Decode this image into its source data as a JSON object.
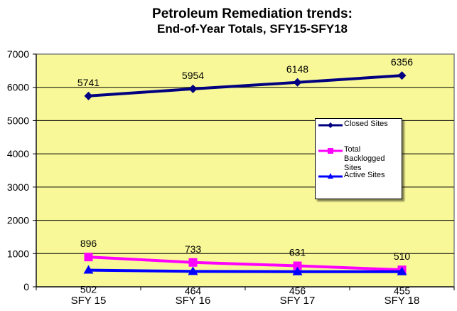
{
  "title": {
    "line1": "Petroleum Remediation trends:",
    "line2": "End-of-Year Totals, SFY15-SFY18"
  },
  "colors": {
    "plot_background": "#F8F898",
    "closed_sites": "#000080",
    "total_backlogged": "#FF00FF",
    "active_sites": "#0000FF",
    "gridlines": "#000000"
  },
  "axes": {
    "y_ticks": [
      "0",
      "1000",
      "2000",
      "3000",
      "4000",
      "5000",
      "6000",
      "7000"
    ],
    "x_ticks": [
      "SFY 15",
      "SFY 16",
      "SFY 17",
      "SFY 18"
    ]
  },
  "legend": {
    "items": [
      {
        "label": "Closed Sites",
        "marker": "diamond"
      },
      {
        "label": "Total Backlogged Sites",
        "marker": "square"
      },
      {
        "label": "Active Sites",
        "marker": "triangle"
      }
    ]
  },
  "data_labels": {
    "closed": [
      "5741",
      "5954",
      "6148",
      "6356"
    ],
    "backlogged": [
      "896",
      "733",
      "631",
      "510"
    ],
    "active": [
      "502",
      "464",
      "456",
      "455"
    ]
  },
  "chart_data": {
    "type": "line",
    "title": "Petroleum Remediation trends: End-of-Year Totals, SFY15-SFY18",
    "xlabel": "",
    "ylabel": "",
    "categories": [
      "SFY 15",
      "SFY 16",
      "SFY 17",
      "SFY 18"
    ],
    "series": [
      {
        "name": "Closed Sites",
        "values": [
          5741,
          5954,
          6148,
          6356
        ],
        "color": "#000080",
        "marker": "diamond"
      },
      {
        "name": "Total Backlogged Sites",
        "values": [
          896,
          733,
          631,
          510
        ],
        "color": "#FF00FF",
        "marker": "square"
      },
      {
        "name": "Active Sites",
        "values": [
          502,
          464,
          456,
          455
        ],
        "color": "#0000FF",
        "marker": "triangle"
      }
    ],
    "ylim": [
      0,
      7000
    ],
    "y_tick_step": 1000,
    "grid": "horizontal major gridlines",
    "legend_position": "inside right, upper-middle"
  }
}
